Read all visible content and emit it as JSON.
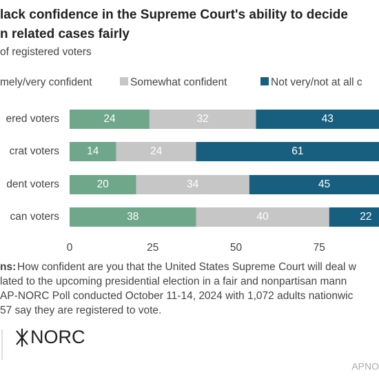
{
  "chart_data": {
    "type": "bar",
    "orientation": "horizontal",
    "stacked": true,
    "title": [
      "lack confidence in the Supreme Court's ability to decide",
      "n related cases fairly"
    ],
    "subtitle": "of registered voters",
    "categories": [
      "ered voters",
      "crat voters",
      "dent voters",
      "can voters"
    ],
    "series": [
      {
        "name": "mely/very confident",
        "color": "#6ea789",
        "values": [
          24,
          14,
          20,
          38
        ]
      },
      {
        "name": "Somewhat confident",
        "color": "#c6c6c6",
        "values": [
          32,
          24,
          34,
          40
        ]
      },
      {
        "name": "Not very/not at all c",
        "color": "#185f7f",
        "values": [
          43,
          61,
          45,
          22
        ]
      }
    ],
    "xlim": [
      0,
      100
    ],
    "xticks": [
      0,
      25,
      50,
      75
    ],
    "notes_label": "ns:",
    "notes": [
      "How confident are you that the United States Supreme Court will deal w",
      "lated to the upcoming presidential election in a fair and nonpartisan mann",
      "AP-NORC Poll conducted October 11-14, 2024 with 1,072 adults nationwic",
      "57 say they are registered to vote."
    ],
    "logo": "NORC",
    "credit": "APNO"
  }
}
